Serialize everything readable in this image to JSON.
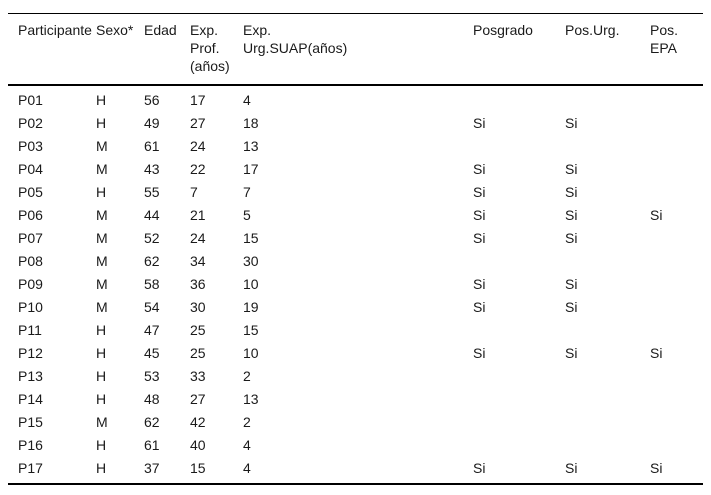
{
  "table": {
    "columns": [
      "Participante",
      "Sexo*",
      "Edad",
      "Exp.\nProf.\n(años)",
      "Exp.\nUrg.SUAP(años)",
      "Posgrado",
      "Pos.Urg.",
      "Pos.\nEPA"
    ],
    "rows": [
      [
        "P01",
        "H",
        "56",
        "17",
        "4",
        "",
        "",
        ""
      ],
      [
        "P02",
        "H",
        "49",
        "27",
        "18",
        "Si",
        "Si",
        ""
      ],
      [
        "P03",
        "M",
        "61",
        "24",
        "13",
        "",
        "",
        ""
      ],
      [
        "P04",
        "M",
        "43",
        "22",
        "17",
        "Si",
        "Si",
        ""
      ],
      [
        "P05",
        "H",
        "55",
        "7",
        "7",
        "Si",
        "Si",
        ""
      ],
      [
        "P06",
        "M",
        "44",
        "21",
        "5",
        "Si",
        "Si",
        "Si"
      ],
      [
        "P07",
        "M",
        "52",
        "24",
        "15",
        "Si",
        "Si",
        ""
      ],
      [
        "P08",
        "M",
        "62",
        "34",
        "30",
        "",
        "",
        ""
      ],
      [
        "P09",
        "M",
        "58",
        "36",
        "10",
        "Si",
        "Si",
        ""
      ],
      [
        "P10",
        "M",
        "54",
        "30",
        "19",
        "Si",
        "Si",
        ""
      ],
      [
        "P11",
        "H",
        "47",
        "25",
        "15",
        "",
        "",
        ""
      ],
      [
        "P12",
        "H",
        "45",
        "25",
        "10",
        "Si",
        "Si",
        "Si"
      ],
      [
        "P13",
        "H",
        "53",
        "33",
        "2",
        "",
        "",
        ""
      ],
      [
        "P14",
        "H",
        "48",
        "27",
        "13",
        "",
        "",
        ""
      ],
      [
        "P15",
        "M",
        "62",
        "42",
        "2",
        "",
        "",
        ""
      ],
      [
        "P16",
        "H",
        "61",
        "40",
        "4",
        "",
        "",
        ""
      ],
      [
        "P17",
        "H",
        "37",
        "15",
        "4",
        "Si",
        "Si",
        "Si"
      ]
    ],
    "text_color": "#1a1a1a",
    "border_color": "#000000"
  }
}
